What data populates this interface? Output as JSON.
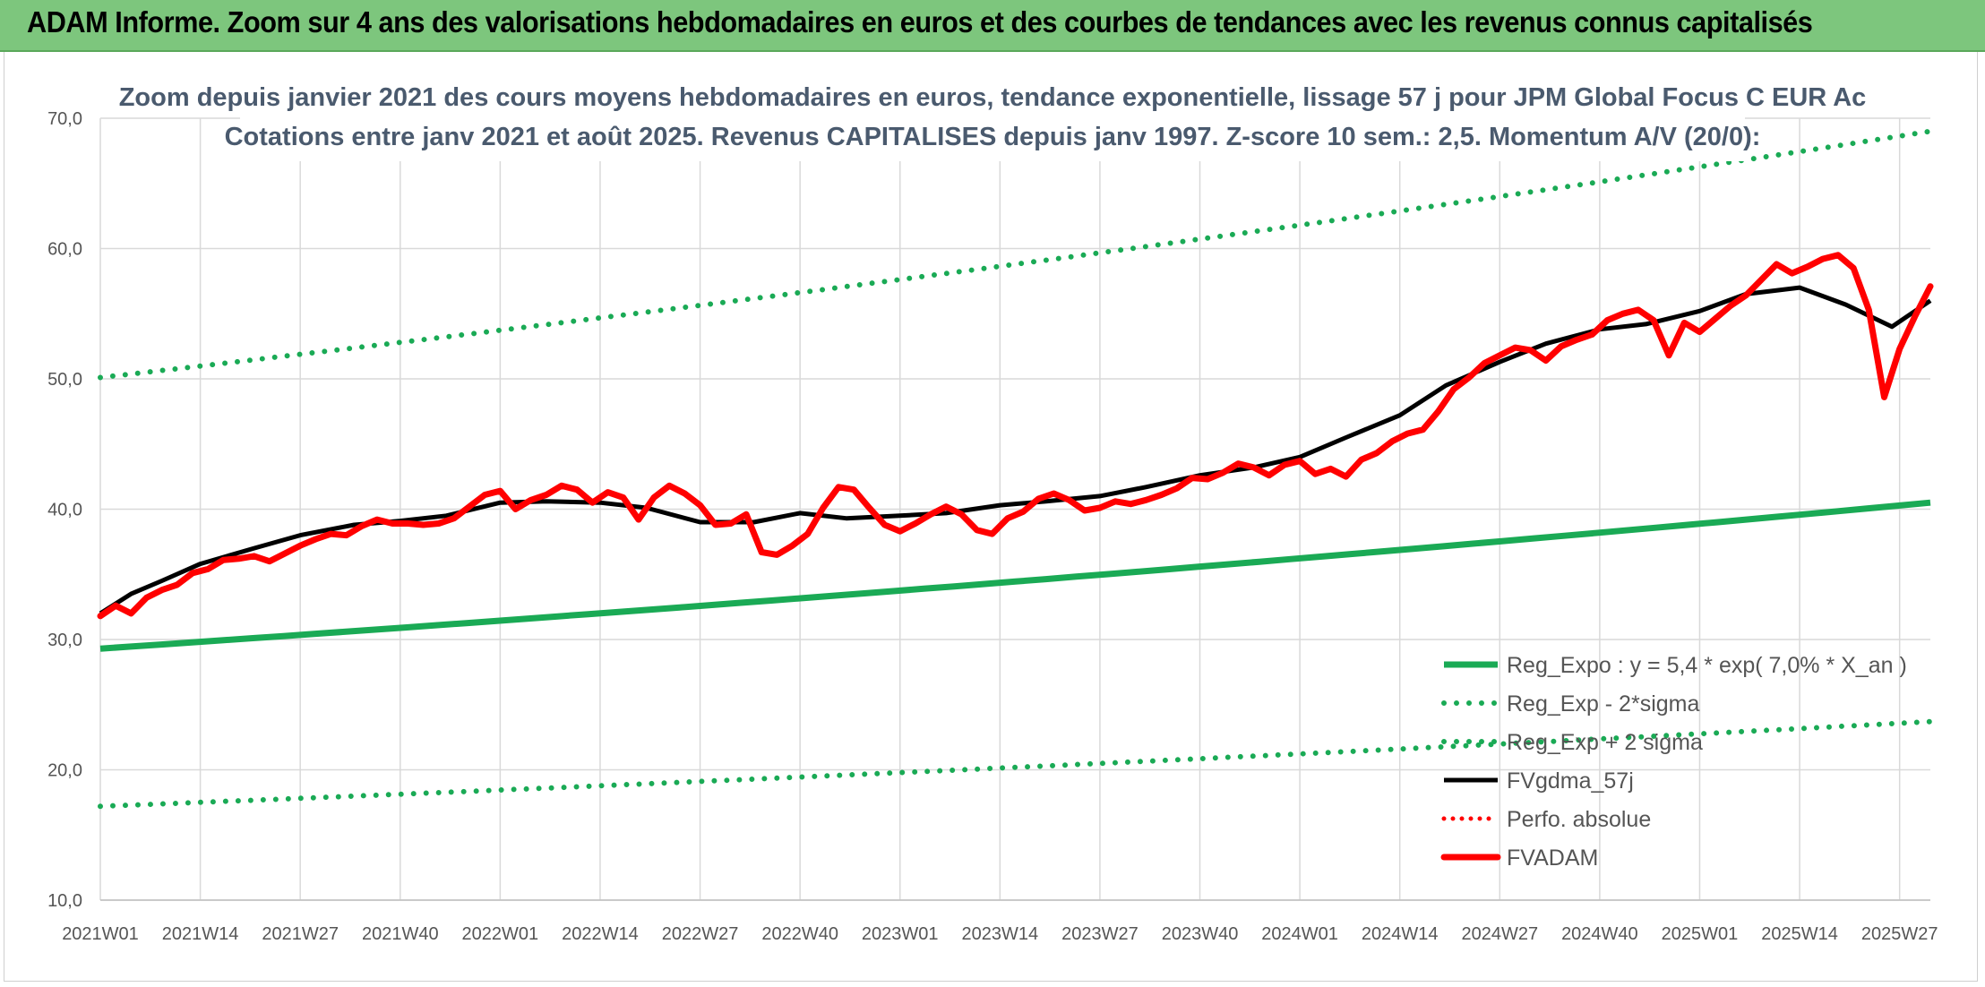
{
  "banner": {
    "title": "ADAM Informe. Zoom sur 4 ans des valorisations hebdomadaires en euros et des courbes de tendances avec les revenus connus capitalisés"
  },
  "colors": {
    "banner_bg": "#7dc67d",
    "reg_expo": "#1aaa55",
    "fvgdma": "#000000",
    "perfo": "#ff0000",
    "fvadam": "#ff0000",
    "grid": "#d9d9d9"
  },
  "chart_data": {
    "type": "line",
    "title_line1": "Zoom depuis janvier 2021 des cours moyens hebdomadaires en euros, tendance exponentielle, lissage 57 j pour JPM Global Focus C EUR Ac",
    "title_line2": "Cotations entre janv 2021 et août 2025. Revenus CAPITALISES depuis janv 1997. Z-score 10 sem.: 2,5. Momentum A/V (20/0):",
    "ylim": [
      10,
      70
    ],
    "yticks": [
      "10,0",
      "20,0",
      "30,0",
      "40,0",
      "50,0",
      "60,0",
      "70,0"
    ],
    "ytick_values": [
      10,
      20,
      30,
      40,
      50,
      60,
      70
    ],
    "xrange": [
      0,
      238
    ],
    "xticks": [
      "2021W01",
      "2021W14",
      "2021W27",
      "2021W40",
      "2022W01",
      "2022W14",
      "2022W27",
      "2022W40",
      "2023W01",
      "2023W14",
      "2023W27",
      "2023W40",
      "2024W01",
      "2024W14",
      "2024W27",
      "2024W40",
      "2025W01",
      "2025W14",
      "2025W27"
    ],
    "grid": "vertical and horizontal",
    "legend_position": "bottom-right",
    "series": [
      {
        "name": "Reg_Expo : y = 5,4 * exp( 7,0% *  X_an )",
        "style": "solid-green",
        "x": [
          0,
          238
        ],
        "y": [
          29.3,
          40.5
        ]
      },
      {
        "name": "Reg_Exp - 2*sigma",
        "style": "dotted-green",
        "x": [
          0,
          238
        ],
        "y": [
          17.2,
          23.7
        ]
      },
      {
        "name": "Reg_Exp + 2 sigma",
        "style": "dotted-green",
        "x": [
          0,
          238
        ],
        "y": [
          50.1,
          69.0
        ]
      },
      {
        "name": "FVgdma_57j",
        "style": "solid-black",
        "x": [
          0,
          4,
          8,
          13,
          20,
          26,
          33,
          39,
          45,
          52,
          58,
          65,
          71,
          78,
          85,
          91,
          97,
          104,
          110,
          117,
          123,
          130,
          136,
          143,
          150,
          156,
          162,
          169,
          175,
          182,
          188,
          195,
          201,
          208,
          214,
          221,
          227,
          233,
          238
        ],
        "y": [
          32.0,
          33.5,
          34.5,
          35.8,
          37.0,
          38.0,
          38.8,
          39.1,
          39.5,
          40.5,
          40.6,
          40.5,
          40.1,
          39.0,
          39.0,
          39.7,
          39.3,
          39.5,
          39.7,
          40.3,
          40.6,
          41.0,
          41.7,
          42.6,
          43.2,
          44.0,
          45.5,
          47.2,
          49.5,
          51.3,
          52.7,
          53.8,
          54.2,
          55.2,
          56.5,
          57.0,
          55.7,
          54.0,
          56.0
        ]
      },
      {
        "name": "Perfo. absolue",
        "style": "dotted-red",
        "x": [],
        "y": []
      },
      {
        "name": "FVADAM",
        "style": "solid-red",
        "x": [
          0,
          2,
          4,
          6,
          8,
          10,
          12,
          14,
          16,
          18,
          20,
          22,
          24,
          26,
          28,
          30,
          32,
          34,
          36,
          38,
          40,
          42,
          44,
          46,
          48,
          50,
          52,
          54,
          56,
          58,
          60,
          62,
          64,
          66,
          68,
          70,
          72,
          74,
          76,
          78,
          80,
          82,
          84,
          86,
          88,
          90,
          92,
          94,
          96,
          98,
          100,
          102,
          104,
          106,
          108,
          110,
          112,
          114,
          116,
          118,
          120,
          122,
          124,
          126,
          128,
          130,
          132,
          134,
          136,
          138,
          140,
          142,
          144,
          146,
          148,
          150,
          152,
          154,
          156,
          158,
          160,
          162,
          164,
          166,
          168,
          170,
          172,
          174,
          176,
          178,
          180,
          182,
          184,
          186,
          188,
          190,
          192,
          194,
          196,
          198,
          200,
          202,
          204,
          206,
          208,
          210,
          212,
          214,
          216,
          218,
          220,
          222,
          224,
          226,
          228,
          230,
          232,
          234,
          236,
          238
        ],
        "y": [
          31.8,
          32.6,
          32.0,
          33.2,
          33.8,
          34.2,
          35.1,
          35.4,
          36.1,
          36.2,
          36.4,
          36.0,
          36.6,
          37.2,
          37.7,
          38.1,
          38.0,
          38.7,
          39.2,
          38.9,
          38.9,
          38.8,
          38.9,
          39.3,
          40.2,
          41.1,
          41.4,
          40.0,
          40.7,
          41.1,
          41.8,
          41.5,
          40.5,
          41.3,
          40.9,
          39.2,
          40.9,
          41.8,
          41.2,
          40.3,
          38.8,
          38.9,
          39.6,
          36.7,
          36.5,
          37.2,
          38.1,
          40.1,
          41.7,
          41.5,
          40.1,
          38.8,
          38.3,
          38.9,
          39.6,
          40.2,
          39.6,
          38.4,
          38.1,
          39.3,
          39.8,
          40.8,
          41.2,
          40.7,
          39.9,
          40.1,
          40.6,
          40.4,
          40.7,
          41.1,
          41.6,
          42.4,
          42.3,
          42.8,
          43.5,
          43.2,
          42.6,
          43.4,
          43.7,
          42.7,
          43.1,
          42.5,
          43.8,
          44.3,
          45.2,
          45.8,
          46.1,
          47.5,
          49.2,
          50.1,
          51.2,
          51.8,
          52.4,
          52.2,
          51.4,
          52.5,
          53.0,
          53.4,
          54.5,
          55.0,
          55.3,
          54.5,
          51.8,
          54.3,
          53.6,
          54.6,
          55.6,
          56.4,
          57.6,
          58.8,
          58.1,
          58.6,
          59.2,
          59.5,
          58.5,
          55.3,
          48.6,
          52.3,
          54.8,
          57.1
        ]
      }
    ]
  },
  "legend": {
    "items": [
      "Reg_Expo : y = 5,4 * exp( 7,0% *  X_an )",
      "Reg_Exp - 2*sigma",
      "Reg_Exp + 2 sigma",
      "FVgdma_57j",
      "Perfo. absolue",
      "FVADAM"
    ]
  }
}
